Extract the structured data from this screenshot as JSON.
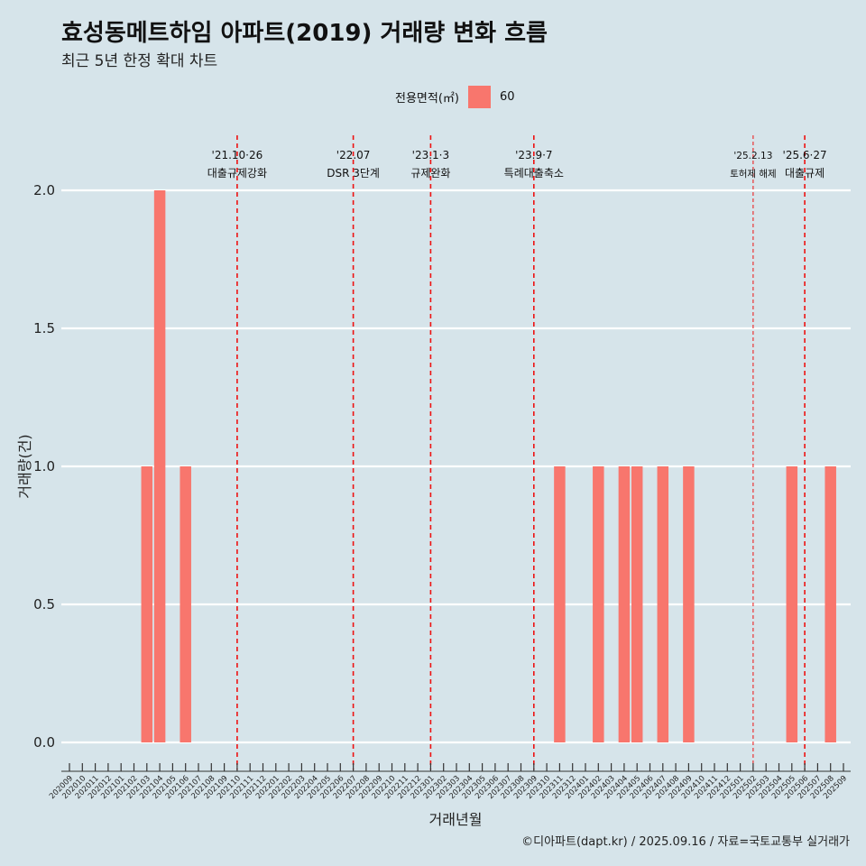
{
  "title": "효성동메트하임 아파트(2019) 거래량 변화 흐름",
  "subtitle": "최근 5년 한정 확대 차트",
  "legend": {
    "title": "전용면적(㎡)",
    "label": "60",
    "color": "#f8766d"
  },
  "caption": "©디아파트(dapt.kr) / 2025.09.16 / 자료=국토교통부 실거래가",
  "chart_data": {
    "type": "bar",
    "xlabel": "거래년월",
    "ylabel": "거래량(건)",
    "ylim": [
      -0.08,
      2.2
    ],
    "yticks": [
      0.0,
      0.5,
      1.0,
      1.5,
      2.0
    ],
    "ytick_labels": [
      "0.0",
      "0.5",
      "1.0",
      "1.5",
      "2.0"
    ],
    "grid": true,
    "legend_position": "top",
    "categories": [
      "202009",
      "202010",
      "202011",
      "202012",
      "202101",
      "202102",
      "202103",
      "202104",
      "202105",
      "202106",
      "202107",
      "202108",
      "202109",
      "202110",
      "202111",
      "202112",
      "202201",
      "202202",
      "202203",
      "202204",
      "202205",
      "202206",
      "202207",
      "202208",
      "202209",
      "202210",
      "202211",
      "202212",
      "202301",
      "202302",
      "202303",
      "202304",
      "202305",
      "202306",
      "202307",
      "202308",
      "202309",
      "202310",
      "202311",
      "202312",
      "202401",
      "202402",
      "202403",
      "202404",
      "202405",
      "202406",
      "202407",
      "202408",
      "202409",
      "202410",
      "202411",
      "202412",
      "202501",
      "202502",
      "202503",
      "202504",
      "202505",
      "202506",
      "202507",
      "202508",
      "202509"
    ],
    "series": [
      {
        "name": "60",
        "color": "#f8766d",
        "values": [
          0,
          0,
          0,
          0,
          0,
          0,
          1,
          2,
          0,
          1,
          0,
          0,
          0,
          0,
          0,
          0,
          0,
          0,
          0,
          0,
          0,
          0,
          0,
          0,
          0,
          0,
          0,
          0,
          0,
          0,
          0,
          0,
          0,
          0,
          0,
          0,
          0,
          0,
          1,
          0,
          0,
          1,
          0,
          1,
          1,
          0,
          1,
          0,
          1,
          0,
          0,
          0,
          0,
          0,
          0,
          0,
          1,
          0,
          0,
          1,
          0
        ]
      }
    ],
    "annotations": [
      {
        "x": "202110",
        "line1": "'21.10·26",
        "line2": "대출규제강화",
        "style": "dashed"
      },
      {
        "x": "202207",
        "line1": "'22.07",
        "line2": "DSR 3단계",
        "style": "dashed"
      },
      {
        "x": "202301",
        "line1": "'23.1·3",
        "line2": "규제완화",
        "style": "dashed"
      },
      {
        "x": "202309",
        "line1": "'23.9·7",
        "line2": "특례대출축소",
        "style": "dashed"
      },
      {
        "x": "202502",
        "line1": "'25.2.13",
        "line2": "토허제 해제",
        "style": "thin"
      },
      {
        "x": "202506",
        "line1": "'25.6·27",
        "line2": "대출규제",
        "style": "dashed"
      }
    ]
  }
}
